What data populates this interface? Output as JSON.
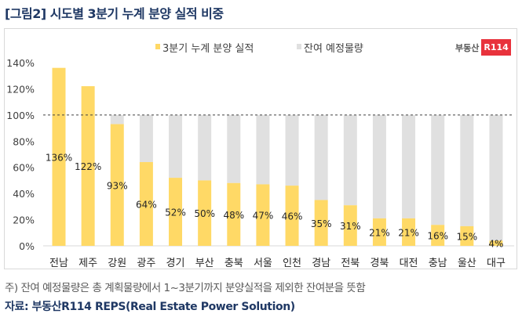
{
  "title": "[그림2] 시도별 3분기 누계 분양 실적 비중",
  "note": "주) 잔여 예정물량은 총 계획물량에서 1~3분기까지 분양실적을 제외한 잔여분을 뜻함",
  "source": "자료: 부동산R114 REPS(Real Estate Power Solution)",
  "logo": {
    "text": "부동산",
    "badge": "R114"
  },
  "colors": {
    "actual": "#FFD966",
    "remaining": "#E0E0E0",
    "title": "#1F3864"
  },
  "chart_data": {
    "type": "bar",
    "stacked": true,
    "categories": [
      "전남",
      "제주",
      "강원",
      "광주",
      "경기",
      "부산",
      "충북",
      "서울",
      "인천",
      "경남",
      "전북",
      "경북",
      "대전",
      "충남",
      "울산",
      "대구"
    ],
    "series": [
      {
        "name": "3분기 누계 분양 실적",
        "values": [
          136,
          122,
          93,
          64,
          52,
          50,
          48,
          47,
          46,
          35,
          31,
          21,
          21,
          16,
          15,
          4
        ]
      },
      {
        "name": "잔여 예정물량",
        "values": [
          0,
          0,
          7,
          36,
          48,
          50,
          52,
          53,
          54,
          65,
          69,
          79,
          79,
          84,
          85,
          96
        ]
      }
    ],
    "data_labels": [
      "136%",
      "122%",
      "93%",
      "64%",
      "52%",
      "50%",
      "48%",
      "47%",
      "46%",
      "35%",
      "31%",
      "21%",
      "21%",
      "16%",
      "15%",
      "4%"
    ],
    "yticks": [
      "0%",
      "20%",
      "40%",
      "60%",
      "80%",
      "100%",
      "120%",
      "140%"
    ],
    "ylim": [
      0,
      140
    ],
    "reference_line": 100,
    "legend_position": "top"
  }
}
